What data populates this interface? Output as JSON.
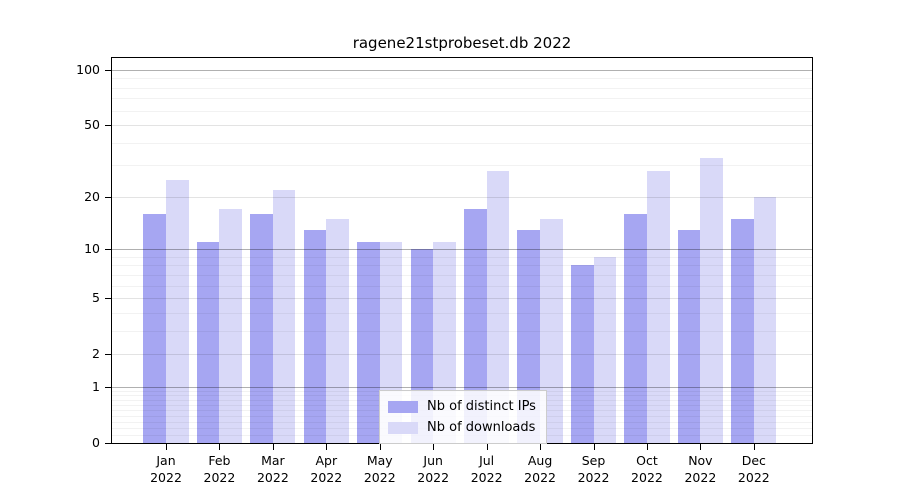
{
  "chart_data": {
    "type": "bar",
    "title": "ragene21stprobeset.db 2022",
    "categories": [
      "Jan",
      "Feb",
      "Mar",
      "Apr",
      "May",
      "Jun",
      "Jul",
      "Aug",
      "Sep",
      "Oct",
      "Nov",
      "Dec"
    ],
    "category_year": "2022",
    "series": [
      {
        "name": "Nb of distinct IPs",
        "color": "#a6a6f2",
        "values": [
          16,
          11,
          16,
          13,
          11,
          10,
          17,
          13,
          8,
          16,
          13,
          15
        ]
      },
      {
        "name": "Nb of downloads",
        "color": "#d9d9f8",
        "values": [
          25,
          17,
          22,
          15,
          11,
          11,
          28,
          15,
          9,
          28,
          33,
          20
        ]
      }
    ],
    "y_axis": {
      "scale": "log1p",
      "tick_labels": [
        100,
        50,
        20,
        10,
        5,
        2,
        1,
        0
      ],
      "major_gridlines": [
        1,
        2,
        5,
        10,
        20,
        50,
        100
      ],
      "emphasized_gridlines": [
        1,
        10,
        100
      ],
      "minor_gridlines": [
        0.1,
        0.2,
        0.3,
        0.4,
        0.5,
        0.6,
        0.7,
        0.8,
        0.9,
        3,
        4,
        6,
        7,
        8,
        9,
        30,
        40,
        60,
        70,
        80,
        90
      ],
      "ylim": [
        0,
        116
      ]
    },
    "grid": true,
    "legend_position": "bottom-center",
    "colors": {
      "grid_major": "#e3e3e3",
      "grid_emphasis": "#b0b0b0",
      "grid_minor": "#f2f2f2",
      "axis": "#000000",
      "background": "#ffffff"
    }
  }
}
